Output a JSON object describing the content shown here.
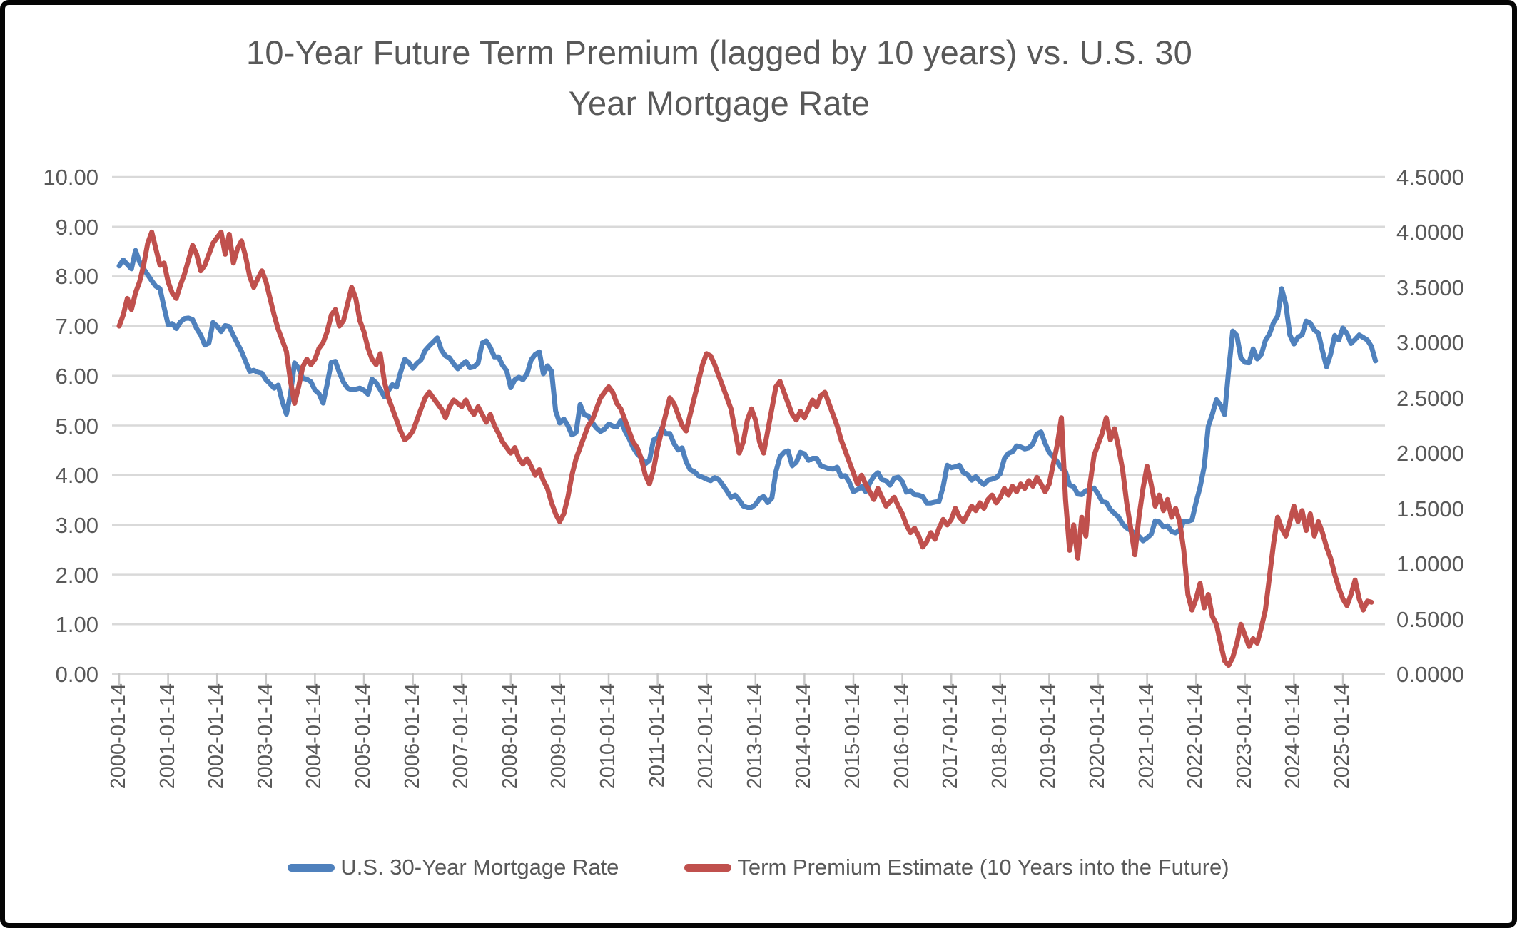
{
  "title": {
    "line1": "10-Year Future Term Premium (lagged by 10 years) vs. U.S. 30",
    "line2": "Year Mortgage Rate"
  },
  "left_axis": {
    "ticks": [
      "10.00",
      "9.00",
      "8.00",
      "7.00",
      "6.00",
      "5.00",
      "4.00",
      "3.00",
      "2.00",
      "1.00",
      "0.00"
    ],
    "min": 0,
    "max": 10
  },
  "right_axis": {
    "ticks": [
      "4.5000",
      "4.0000",
      "3.5000",
      "3.0000",
      "2.5000",
      "2.0000",
      "1.5000",
      "1.0000",
      "0.5000",
      "0.0000"
    ],
    "min": 0,
    "max": 4.5
  },
  "x_axis": {
    "ticks": [
      "2000-01-14",
      "2001-01-14",
      "2002-01-14",
      "2003-01-14",
      "2004-01-14",
      "2005-01-14",
      "2006-01-14",
      "2007-01-14",
      "2008-01-14",
      "2009-01-14",
      "2010-01-14",
      "2011-01-14",
      "2012-01-14",
      "2013-01-14",
      "2014-01-14",
      "2015-01-14",
      "2016-01-14",
      "2017-01-14",
      "2018-01-14",
      "2019-01-14",
      "2020-01-14",
      "2021-01-14",
      "2022-01-14",
      "2023-01-14",
      "2024-01-14",
      "2025-01-14"
    ]
  },
  "legend": [
    {
      "label": "U.S. 30-Year Mortgage Rate",
      "color": "#4F81BD"
    },
    {
      "label": "Term Premium Estimate (10 Years into the Future)",
      "color": "#C0504D"
    }
  ],
  "colors": {
    "grid": "#D9D9D9",
    "tick": "#C6C6C6",
    "text": "#595959",
    "series_blue": "#4F81BD",
    "series_red": "#C0504D"
  },
  "chart_data": {
    "type": "line",
    "title": "10-Year Future Term Premium (lagged by 10 years) vs. U.S. 30 Year Mortgage Rate",
    "x_start": "2000-01",
    "x_frequency": "monthly",
    "x_tick_labels": [
      "2000-01-14",
      "2001-01-14",
      "2002-01-14",
      "2003-01-14",
      "2004-01-14",
      "2005-01-14",
      "2006-01-14",
      "2007-01-14",
      "2008-01-14",
      "2009-01-14",
      "2010-01-14",
      "2011-01-14",
      "2012-01-14",
      "2013-01-14",
      "2014-01-14",
      "2015-01-14",
      "2016-01-14",
      "2017-01-14",
      "2018-01-14",
      "2019-01-14",
      "2020-01-14",
      "2021-01-14",
      "2022-01-14",
      "2023-01-14",
      "2024-01-14",
      "2025-01-14"
    ],
    "left_ylim": [
      0,
      10
    ],
    "right_ylim": [
      0,
      4.5
    ],
    "grid": true,
    "legend_position": "bottom",
    "series": [
      {
        "name": "U.S. 30-Year Mortgage Rate",
        "axis": "left",
        "color": "#4F81BD",
        "values": [
          8.21,
          8.33,
          8.24,
          8.15,
          8.52,
          8.29,
          8.15,
          8.03,
          7.91,
          7.8,
          7.75,
          7.38,
          7.03,
          7.05,
          6.95,
          7.08,
          7.15,
          7.16,
          7.13,
          6.95,
          6.82,
          6.62,
          6.66,
          7.07,
          7.0,
          6.89,
          7.01,
          6.99,
          6.81,
          6.65,
          6.49,
          6.29,
          6.09,
          6.11,
          6.07,
          6.05,
          5.92,
          5.84,
          5.75,
          5.81,
          5.48,
          5.23,
          5.63,
          6.26,
          6.15,
          5.95,
          5.93,
          5.88,
          5.71,
          5.64,
          5.45,
          5.83,
          6.27,
          6.29,
          6.06,
          5.87,
          5.75,
          5.72,
          5.73,
          5.75,
          5.71,
          5.63,
          5.93,
          5.86,
          5.72,
          5.58,
          5.7,
          5.82,
          5.77,
          6.07,
          6.33,
          6.27,
          6.15,
          6.25,
          6.32,
          6.51,
          6.6,
          6.68,
          6.76,
          6.52,
          6.4,
          6.36,
          6.24,
          6.14,
          6.22,
          6.29,
          6.16,
          6.18,
          6.26,
          6.66,
          6.7,
          6.57,
          6.38,
          6.38,
          6.21,
          6.1,
          5.76,
          5.92,
          5.97,
          5.92,
          6.04,
          6.32,
          6.43,
          6.48,
          6.04,
          6.2,
          6.09,
          5.29,
          5.05,
          5.13,
          5.0,
          4.81,
          4.86,
          5.42,
          5.22,
          5.19,
          5.06,
          4.95,
          4.88,
          4.93,
          5.03,
          4.99,
          4.97,
          5.1,
          4.89,
          4.74,
          4.56,
          4.43,
          4.35,
          4.23,
          4.3,
          4.71,
          4.76,
          4.95,
          4.84,
          4.84,
          4.64,
          4.51,
          4.55,
          4.27,
          4.11,
          4.07,
          3.99,
          3.96,
          3.92,
          3.89,
          3.95,
          3.91,
          3.8,
          3.68,
          3.55,
          3.6,
          3.5,
          3.38,
          3.35,
          3.35,
          3.41,
          3.53,
          3.57,
          3.45,
          3.54,
          4.07,
          4.37,
          4.46,
          4.49,
          4.19,
          4.26,
          4.46,
          4.43,
          4.3,
          4.34,
          4.34,
          4.19,
          4.16,
          4.13,
          4.12,
          4.16,
          3.98,
          3.99,
          3.86,
          3.67,
          3.71,
          3.77,
          3.67,
          3.84,
          3.98,
          4.05,
          3.91,
          3.89,
          3.8,
          3.94,
          3.96,
          3.87,
          3.66,
          3.69,
          3.61,
          3.6,
          3.57,
          3.44,
          3.44,
          3.46,
          3.47,
          3.77,
          4.2,
          4.15,
          4.17,
          4.2,
          4.05,
          4.01,
          3.9,
          3.97,
          3.88,
          3.81,
          3.9,
          3.92,
          3.95,
          4.03,
          4.33,
          4.44,
          4.47,
          4.59,
          4.57,
          4.53,
          4.55,
          4.63,
          4.83,
          4.87,
          4.64,
          4.46,
          4.37,
          4.27,
          4.14,
          4.07,
          3.8,
          3.77,
          3.62,
          3.61,
          3.69,
          3.7,
          3.74,
          3.62,
          3.47,
          3.45,
          3.31,
          3.23,
          3.16,
          3.02,
          2.94,
          2.89,
          2.83,
          2.77,
          2.68,
          2.74,
          2.81,
          3.08,
          3.06,
          2.96,
          2.98,
          2.87,
          2.84,
          2.9,
          3.07,
          3.07,
          3.1,
          3.45,
          3.76,
          4.17,
          4.98,
          5.23,
          5.52,
          5.41,
          5.22,
          6.11,
          6.9,
          6.81,
          6.36,
          6.27,
          6.26,
          6.54,
          6.34,
          6.43,
          6.71,
          6.84,
          7.07,
          7.2,
          7.75,
          7.44,
          6.82,
          6.64,
          6.78,
          6.82,
          7.1,
          7.06,
          6.92,
          6.86,
          6.5,
          6.18,
          6.43,
          6.81,
          6.72,
          6.96,
          6.85,
          6.65,
          6.73,
          6.82,
          6.77,
          6.72,
          6.59,
          6.3
        ]
      },
      {
        "name": "Term Premium Estimate (10 Years into the Future)",
        "axis": "right",
        "color": "#C0504D",
        "values": [
          3.15,
          3.25,
          3.4,
          3.3,
          3.45,
          3.55,
          3.7,
          3.9,
          4.0,
          3.85,
          3.7,
          3.72,
          3.55,
          3.45,
          3.4,
          3.52,
          3.62,
          3.75,
          3.88,
          3.8,
          3.65,
          3.7,
          3.8,
          3.9,
          3.95,
          4.0,
          3.8,
          3.98,
          3.72,
          3.85,
          3.92,
          3.78,
          3.6,
          3.5,
          3.58,
          3.65,
          3.55,
          3.4,
          3.25,
          3.12,
          3.02,
          2.92,
          2.65,
          2.45,
          2.6,
          2.78,
          2.85,
          2.8,
          2.85,
          2.95,
          3.0,
          3.1,
          3.25,
          3.3,
          3.15,
          3.2,
          3.35,
          3.5,
          3.4,
          3.2,
          3.1,
          2.95,
          2.85,
          2.8,
          2.9,
          2.65,
          2.5,
          2.4,
          2.3,
          2.2,
          2.12,
          2.15,
          2.2,
          2.3,
          2.4,
          2.5,
          2.55,
          2.5,
          2.45,
          2.4,
          2.32,
          2.42,
          2.48,
          2.45,
          2.42,
          2.48,
          2.4,
          2.35,
          2.42,
          2.35,
          2.28,
          2.35,
          2.25,
          2.18,
          2.1,
          2.05,
          2.0,
          2.05,
          1.95,
          1.9,
          1.95,
          1.88,
          1.8,
          1.85,
          1.75,
          1.68,
          1.55,
          1.45,
          1.38,
          1.45,
          1.6,
          1.8,
          1.95,
          2.05,
          2.15,
          2.25,
          2.3,
          2.4,
          2.5,
          2.55,
          2.6,
          2.55,
          2.45,
          2.4,
          2.3,
          2.2,
          2.1,
          2.05,
          1.95,
          1.8,
          1.72,
          1.85,
          2.05,
          2.2,
          2.35,
          2.5,
          2.45,
          2.35,
          2.25,
          2.2,
          2.35,
          2.5,
          2.65,
          2.8,
          2.9,
          2.88,
          2.8,
          2.7,
          2.6,
          2.5,
          2.4,
          2.2,
          2.0,
          2.1,
          2.3,
          2.4,
          2.3,
          2.1,
          2.0,
          2.2,
          2.4,
          2.6,
          2.65,
          2.55,
          2.45,
          2.35,
          2.3,
          2.38,
          2.32,
          2.4,
          2.48,
          2.42,
          2.52,
          2.55,
          2.45,
          2.35,
          2.25,
          2.12,
          2.02,
          1.92,
          1.82,
          1.72,
          1.8,
          1.72,
          1.65,
          1.58,
          1.68,
          1.6,
          1.52,
          1.56,
          1.6,
          1.52,
          1.45,
          1.35,
          1.28,
          1.32,
          1.25,
          1.15,
          1.2,
          1.28,
          1.22,
          1.32,
          1.4,
          1.35,
          1.4,
          1.5,
          1.42,
          1.38,
          1.45,
          1.52,
          1.48,
          1.55,
          1.5,
          1.58,
          1.62,
          1.55,
          1.6,
          1.68,
          1.62,
          1.7,
          1.65,
          1.72,
          1.68,
          1.75,
          1.7,
          1.78,
          1.72,
          1.65,
          1.72,
          1.9,
          2.08,
          2.32,
          1.58,
          1.12,
          1.35,
          1.05,
          1.42,
          1.25,
          1.72,
          1.98,
          2.08,
          2.18,
          2.32,
          2.12,
          2.22,
          2.05,
          1.85,
          1.55,
          1.32,
          1.08,
          1.42,
          1.68,
          1.88,
          1.72,
          1.52,
          1.62,
          1.48,
          1.58,
          1.42,
          1.5,
          1.38,
          1.12,
          0.72,
          0.58,
          0.68,
          0.82,
          0.6,
          0.72,
          0.52,
          0.45,
          0.28,
          0.12,
          0.08,
          0.15,
          0.28,
          0.45,
          0.35,
          0.25,
          0.32,
          0.28,
          0.42,
          0.58,
          0.88,
          1.18,
          1.42,
          1.32,
          1.25,
          1.38,
          1.52,
          1.38,
          1.48,
          1.3,
          1.45,
          1.25,
          1.38,
          1.28,
          1.15,
          1.05,
          0.9,
          0.78,
          0.68,
          0.62,
          0.72,
          0.85,
          0.68,
          0.58,
          0.66,
          0.65
        ]
      }
    ]
  }
}
